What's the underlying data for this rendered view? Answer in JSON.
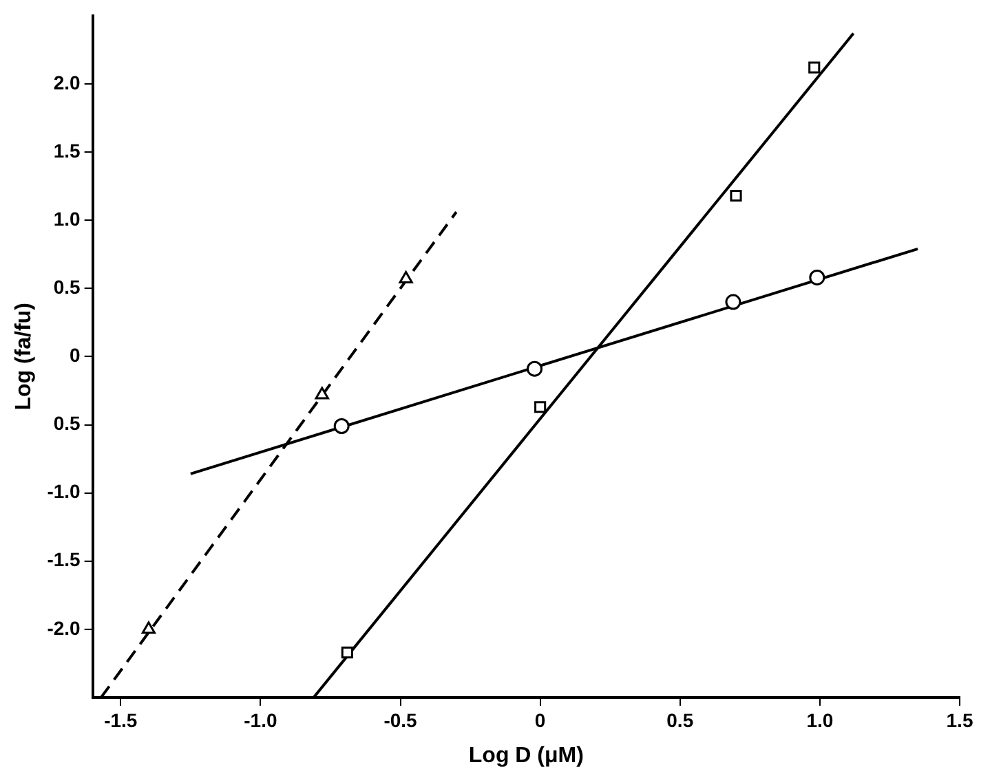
{
  "chart_data": {
    "type": "scatter",
    "xlabel": "Log D (μM)",
    "ylabel": "Log (fa/fu)",
    "xlim": [
      -1.6,
      1.5
    ],
    "ylim": [
      -2.5,
      2.5
    ],
    "xticks": [
      -1.5,
      {
        "value": -1.0,
        "label": "-1.0"
      },
      -0.5,
      0,
      0.5,
      {
        "value": 1.0,
        "label": "1.0"
      },
      1.5
    ],
    "yticks": [
      {
        "value": -2.0,
        "label": "-2.0"
      },
      {
        "value": -1.5,
        "label": "-1.5"
      },
      {
        "value": -1.0,
        "label": "-1.0"
      },
      {
        "value": -0.5,
        "label": "0.5"
      },
      0,
      0.5,
      {
        "value": 1.0,
        "label": "1.0"
      },
      1.5,
      {
        "value": 2.0,
        "label": "2.0"
      }
    ],
    "grid": false,
    "legend": false,
    "series": [
      {
        "type": "scatter",
        "marker": "triangle",
        "color": "#000000",
        "x": [
          -1.4,
          -0.78,
          -0.48
        ],
        "values": [
          -2.0,
          -0.28,
          0.57
        ]
      },
      {
        "type": "scatter",
        "marker": "circle",
        "color": "#000000",
        "x": [
          -0.71,
          -0.02,
          0.69,
          0.99
        ],
        "values": [
          -0.51,
          -0.09,
          0.4,
          0.58
        ]
      },
      {
        "type": "scatter",
        "marker": "square",
        "color": "#000000",
        "x": [
          -0.69,
          0.0,
          0.7,
          0.98
        ],
        "values": [
          -2.17,
          -0.37,
          1.18,
          2.12
        ]
      },
      {
        "type": "line",
        "marker": "none",
        "line_style": "dashed",
        "color": "#000000",
        "x": [
          -1.57,
          -0.3
        ],
        "values": [
          -2.5,
          1.06
        ]
      },
      {
        "type": "line",
        "marker": "none",
        "line_style": "solid",
        "color": "#000000",
        "x": [
          -1.25,
          1.35
        ],
        "values": [
          -0.86,
          0.79
        ]
      },
      {
        "type": "line",
        "marker": "none",
        "line_style": "solid",
        "color": "#000000",
        "x": [
          -0.81,
          1.12
        ],
        "values": [
          -2.5,
          2.37
        ]
      }
    ]
  }
}
